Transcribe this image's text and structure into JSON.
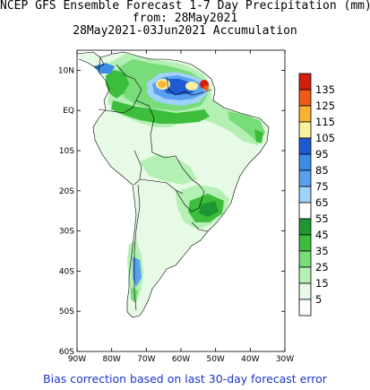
{
  "title": {
    "line1": "NCEP GFS Ensemble Forecast 1-7 Day Precipitation (mm)",
    "line2": "from: 28May2021",
    "line3": "28May2021-03Jun2021 Accumulation"
  },
  "footer": "Bias correction based on last 30-day forecast error",
  "axes": {
    "lat_labels": [
      "10N",
      "EQ",
      "10S",
      "20S",
      "30S",
      "40S",
      "50S",
      "60S"
    ],
    "lon_labels": [
      "90W",
      "80W",
      "70W",
      "60W",
      "50W",
      "40W",
      "30W"
    ]
  },
  "colorbar": {
    "levels": [
      {
        "label": "135",
        "color": "#d21e0f"
      },
      {
        "label": "125",
        "color": "#f05a14"
      },
      {
        "label": "115",
        "color": "#fab432"
      },
      {
        "label": "105",
        "color": "#faf0a0"
      },
      {
        "label": "95",
        "color": "#1e5ad2"
      },
      {
        "label": "85",
        "color": "#3c8ce6"
      },
      {
        "label": "75",
        "color": "#5aa0f0"
      },
      {
        "label": "65",
        "color": "#a0d2fa"
      },
      {
        "label": "55",
        "color": "#ffffff"
      },
      {
        "label": "45",
        "color": "#1e9632"
      },
      {
        "label": "35",
        "color": "#3cbe3c"
      },
      {
        "label": "25",
        "color": "#78dc78"
      },
      {
        "label": "15",
        "color": "#b4f0b4"
      },
      {
        "label": "5",
        "color": "#e6fae6"
      },
      {
        "label": "",
        "color": "#ffffff"
      }
    ]
  }
}
